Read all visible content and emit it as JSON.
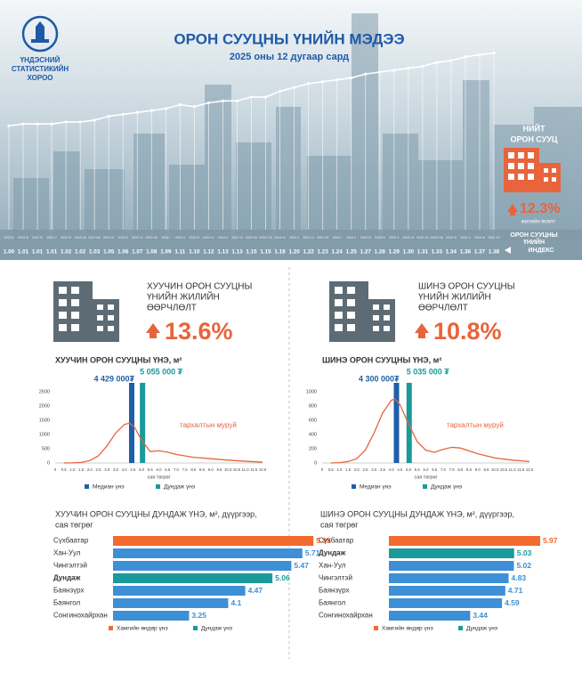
{
  "header": {
    "org": [
      "ҮНДЭСНИЙ",
      "СТАТИСТИКИЙН",
      "ХОРОО"
    ],
    "title": "ОРОН СУУЦНЫ ҮНИЙН МЭДЭЭ",
    "subtitle": "2025 оны 12 дугаар сард"
  },
  "total": {
    "title": [
      "НИЙТ",
      "ОРОН СУУЦ"
    ],
    "change": "12.3%",
    "change_note": "жилийн өсөлт",
    "index_label": [
      "ОРОН СУУЦНЫ",
      "ҮНИЙН",
      "ИНДЕКС"
    ]
  },
  "panels": [
    {
      "title": [
        "ХУУЧИН ОРОН СУУЦНЫ",
        "ҮНИЙН ЖИЛИЙН",
        "ӨӨРЧЛӨЛТ"
      ],
      "change": "13.6%"
    },
    {
      "title": [
        "ШИНЭ ОРОН СУУЦНЫ",
        "ҮНИЙН ЖИЛИЙН",
        "ӨӨРЧЛӨЛТ"
      ],
      "change": "10.8%"
    }
  ],
  "chart_data": [
    {
      "type": "line",
      "color": "#ffffff",
      "ylim": [
        0.45,
        1.47
      ],
      "categories": [
        "2023 II",
        "2023 III",
        "2023 IV",
        "2023 V",
        "2023 VI",
        "2023 VII",
        "2023 VIII",
        "2023 IX",
        "2023 X",
        "2023 XI",
        "2023 XII",
        "2024 I",
        "2024 II",
        "2024 III",
        "2024 IV",
        "2024 V",
        "2024 VI",
        "2024 VII",
        "2024 VIII",
        "2024 IX",
        "2024 X",
        "2024 XI",
        "2024 XII",
        "2025 I",
        "2025 II",
        "2025 III",
        "2025 IV",
        "2025 V",
        "2025 VI",
        "2025 VII",
        "2025 VIII",
        "2025 IX",
        "2025 X",
        "2025 XI",
        "2025 XII"
      ],
      "values": [
        1.0,
        1.01,
        1.01,
        1.01,
        1.02,
        1.02,
        1.03,
        1.05,
        1.06,
        1.07,
        1.08,
        1.09,
        1.11,
        1.1,
        1.12,
        1.13,
        1.13,
        1.15,
        1.15,
        1.18,
        1.2,
        1.22,
        1.23,
        1.24,
        1.25,
        1.27,
        1.28,
        1.29,
        1.3,
        1.31,
        1.33,
        1.34,
        1.36,
        1.37,
        1.38
      ],
      "value_labels": [
        "1.00",
        "1.01",
        "1.01",
        "1.01",
        "1.02",
        "1.02",
        "1.03",
        "1.05",
        "1.06",
        "1.07",
        "1.08",
        "1.09",
        "1.11",
        "1.10",
        "1.12",
        "1.13",
        "1.13",
        "1.15",
        "1.15",
        "1.18",
        "1.20",
        "1.22",
        "1.23",
        "1.24",
        "1.25",
        "1.27",
        "1.28",
        "1.29",
        "1.30",
        "1.31",
        "1.33",
        "1.34",
        "1.36",
        "1.37",
        "1.38"
      ]
    },
    {
      "type": "density",
      "title": "ХУУЧИН ОРОН СУУЦНЫ ҮНЭ, м²",
      "xlabel": "сая төгрөг",
      "annotation": "тархалтын муруй",
      "color": "#e8643c",
      "x": [
        0.5,
        1,
        1.5,
        2,
        2.5,
        3,
        3.5,
        4,
        4.3,
        4.6,
        5,
        5.5,
        6,
        6.5,
        7,
        7.5,
        8,
        9,
        10,
        11,
        12
      ],
      "values": [
        0,
        5,
        20,
        80,
        250,
        600,
        1050,
        1350,
        1400,
        1250,
        800,
        400,
        430,
        380,
        300,
        250,
        200,
        150,
        100,
        60,
        30
      ],
      "xlim": [
        0,
        12
      ],
      "ylim": [
        0,
        2500
      ],
      "yticks": [
        0,
        500,
        1000,
        1500,
        2000,
        2500
      ],
      "xticks": [
        0,
        0.5,
        {
          "value": 1,
          "label": "1.0"
        },
        1.5,
        {
          "value": 2,
          "label": "2.0"
        },
        2.5,
        {
          "value": 3,
          "label": "3.0"
        },
        3.5,
        {
          "value": 4,
          "label": "4.0"
        },
        4.5,
        {
          "value": 5,
          "label": "5.0"
        },
        5.5,
        {
          "value": 6,
          "label": "6.0"
        },
        6.5,
        {
          "value": 7,
          "label": "7.0"
        },
        7.5,
        {
          "value": 8,
          "label": "8.0"
        },
        8.5,
        {
          "value": 9,
          "label": "9.0"
        },
        9.5,
        {
          "value": 10,
          "label": "10.0"
        },
        10.5,
        {
          "value": 11,
          "label": "11.0"
        },
        11.5,
        {
          "value": 12,
          "label": "12.0"
        }
      ],
      "markers": [
        {
          "name": "Медиан үнэ",
          "color": "#1f5fa8",
          "value": 4.429,
          "label": "4 429 000₮"
        },
        {
          "name": "Дундаж үнэ",
          "color": "#1a9a9a",
          "value": 5.055,
          "label": "5 055 000 ₮"
        }
      ]
    },
    {
      "type": "density",
      "title": "ШИНЭ ОРОН СУУЦНЫ ҮНЭ, м²",
      "xlabel": "сая төгрөг",
      "annotation": "тархалтын муруй",
      "color": "#e8643c",
      "x": [
        0.5,
        1,
        1.5,
        2,
        2.5,
        3,
        3.5,
        4,
        4.2,
        4.5,
        5,
        5.5,
        6,
        6.5,
        7,
        7.5,
        8,
        9,
        10,
        11,
        12
      ],
      "values": [
        0,
        5,
        20,
        60,
        180,
        420,
        700,
        880,
        900,
        820,
        550,
        300,
        180,
        150,
        190,
        220,
        210,
        130,
        70,
        40,
        20
      ],
      "xlim": [
        0,
        12
      ],
      "ylim": [
        0,
        1000
      ],
      "yticks": [
        0,
        200,
        400,
        600,
        800,
        1000
      ],
      "xticks": [
        0,
        0.5,
        {
          "value": 1,
          "label": "1.0"
        },
        1.5,
        {
          "value": 2,
          "label": "2.0"
        },
        2.5,
        {
          "value": 3,
          "label": "3.0"
        },
        3.5,
        {
          "value": 4,
          "label": "4.0"
        },
        4.5,
        {
          "value": 5,
          "label": "5.0"
        },
        5.5,
        {
          "value": 6,
          "label": "6.0"
        },
        6.5,
        {
          "value": 7,
          "label": "7.0"
        },
        7.5,
        {
          "value": 8,
          "label": "8.0"
        },
        8.5,
        {
          "value": 9,
          "label": "9.0"
        },
        9.5,
        {
          "value": 10,
          "label": "10.0"
        },
        10.5,
        {
          "value": 11,
          "label": "11.0"
        },
        11.5,
        {
          "value": 12,
          "label": "12.0"
        }
      ],
      "markers": [
        {
          "name": "Медиан үнэ",
          "color": "#1f5fa8",
          "value": 4.3,
          "label": "4 300 000₮"
        },
        {
          "name": "Дундаж үнэ",
          "color": "#1a9a9a",
          "value": 5.035,
          "label": "5 035 000 ₮"
        }
      ]
    },
    {
      "type": "hbar",
      "title": [
        "ХУУЧИН ОРОН СУУЦНЫ ДУНДАЖ ҮНЭ, м², дүүргээр,",
        "сая төгрөг"
      ],
      "xlim": [
        1.6,
        6.1
      ],
      "categories": [
        "Сүхбаатар",
        "Хан-Уул",
        "Чингэлтэй",
        "Дундаж",
        "Баянзүрх",
        "Баянгол",
        "Сонгинохайрхан"
      ],
      "values": [
        5.95,
        5.71,
        5.47,
        5.06,
        4.47,
        4.1,
        3.25
      ],
      "colors": [
        "#f26a2e",
        "#3d8fd6",
        "#3d8fd6",
        "#1a9a9a",
        "#3d8fd6",
        "#3d8fd6",
        "#3d8fd6"
      ],
      "legend": [
        {
          "name": "Хамгийн өндөр үнэ",
          "color": "#f26a2e"
        },
        {
          "name": "Дундаж үнэ",
          "color": "#1a9a9a"
        }
      ]
    },
    {
      "type": "hbar",
      "title": [
        "ШИНЭ ОРОН СУУЦНЫ ДУНДАЖ ҮНЭ, м², дүүргээр,",
        "сая төгрөг"
      ],
      "xlim": [
        0.5,
        6.1
      ],
      "categories": [
        "Сүхбаатар",
        "Дундаж",
        "Хан-Уул",
        "Чингэлтэй",
        "Баянзүрх",
        "Баянгол",
        "Сонгинохайрхан"
      ],
      "values": [
        5.97,
        5.03,
        5.02,
        4.83,
        4.71,
        4.59,
        3.44
      ],
      "colors": [
        "#f26a2e",
        "#1a9a9a",
        "#3d8fd6",
        "#3d8fd6",
        "#3d8fd6",
        "#3d8fd6",
        "#3d8fd6"
      ],
      "legend": [
        {
          "name": "Хамгийн өндөр үнэ",
          "color": "#f26a2e"
        },
        {
          "name": "Дундаж үнэ",
          "color": "#1a9a9a"
        }
      ]
    }
  ]
}
